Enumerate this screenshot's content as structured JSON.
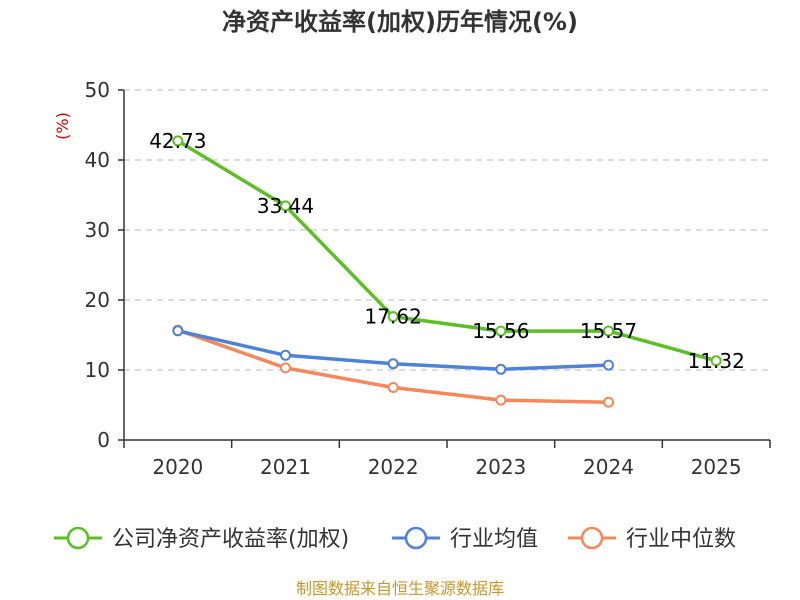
{
  "chart_data": {
    "type": "line",
    "title": "净资产收益率(加权)历年情况(%)",
    "ylabel": "(%)",
    "xlabel": "",
    "categories": [
      "2020",
      "2021",
      "2022",
      "2023",
      "2024",
      "2025"
    ],
    "ylim": [
      0,
      50
    ],
    "yticks": [
      0,
      10,
      20,
      30,
      40,
      50
    ],
    "grid": true,
    "legend_position": "bottom",
    "series": [
      {
        "name": "公司净资产收益率(加权)",
        "color": "#5cbf26",
        "values": [
          42.73,
          33.44,
          17.62,
          15.56,
          15.57,
          11.32
        ],
        "labels": [
          "42.73",
          "33.44",
          "17.62",
          "15.56",
          "15.57",
          "11.32"
        ]
      },
      {
        "name": "行业均值",
        "color": "#4e82d6",
        "values": [
          15.6,
          12.1,
          10.9,
          10.1,
          10.7,
          null
        ]
      },
      {
        "name": "行业中位数",
        "color": "#f5875a",
        "values": [
          15.7,
          10.3,
          7.5,
          5.7,
          5.4,
          null
        ]
      }
    ],
    "footer": "制图数据来自恒生聚源数据库"
  }
}
